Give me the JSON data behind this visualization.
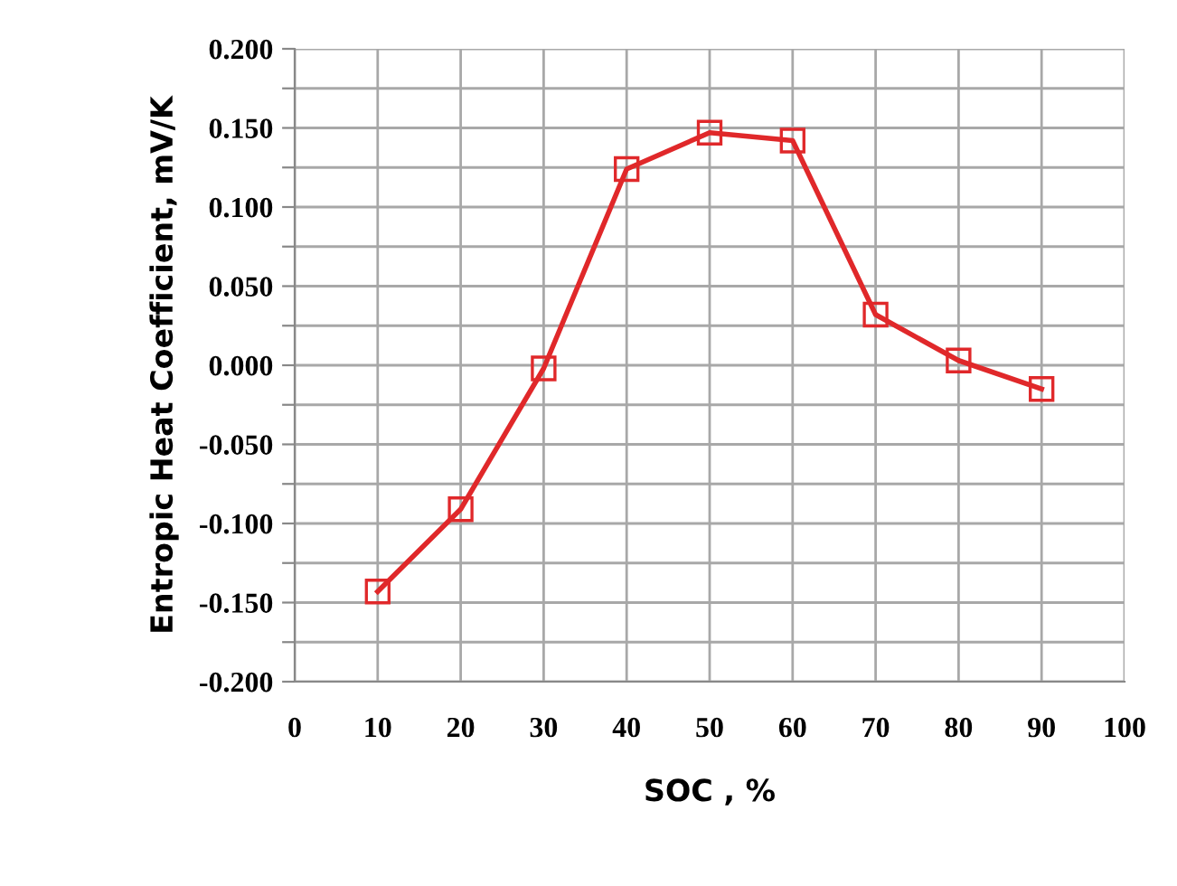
{
  "chart_data": {
    "type": "line",
    "xlabel": "SOC , %",
    "ylabel": "Entropic Heat Coefficient, mV/K",
    "x": [
      10,
      20,
      30,
      40,
      50,
      60,
      70,
      80,
      90
    ],
    "series": [
      {
        "color": "#e0282a",
        "values": [
          -0.143,
          -0.091,
          -0.002,
          0.124,
          0.147,
          0.142,
          0.032,
          0.003,
          -0.015
        ]
      }
    ],
    "xlim": [
      0,
      100
    ],
    "xticks": [
      0,
      10,
      20,
      30,
      40,
      50,
      60,
      70,
      80,
      90,
      100
    ],
    "ylim": [
      -0.2,
      0.2
    ],
    "yticks": [
      {
        "value": -0.2,
        "label": "-0.200"
      },
      {
        "value": -0.175,
        "label": null
      },
      {
        "value": -0.15,
        "label": "-0.150"
      },
      {
        "value": -0.125,
        "label": null
      },
      {
        "value": -0.1,
        "label": "-0.100"
      },
      {
        "value": -0.075,
        "label": null
      },
      {
        "value": -0.05,
        "label": "-0.050"
      },
      {
        "value": -0.025,
        "label": null
      },
      {
        "value": 0,
        "label": "0.000"
      },
      {
        "value": 0.025,
        "label": null
      },
      {
        "value": 0.05,
        "label": "0.050"
      },
      {
        "value": 0.075,
        "label": null
      },
      {
        "value": 0.1,
        "label": "0.100"
      },
      {
        "value": 0.125,
        "label": null
      },
      {
        "value": 0.15,
        "label": "0.150"
      },
      {
        "value": 0.175,
        "label": null
      },
      {
        "value": 0.2,
        "label": "0.200"
      }
    ],
    "grid": true,
    "marker": "square",
    "line_style": "solid"
  }
}
